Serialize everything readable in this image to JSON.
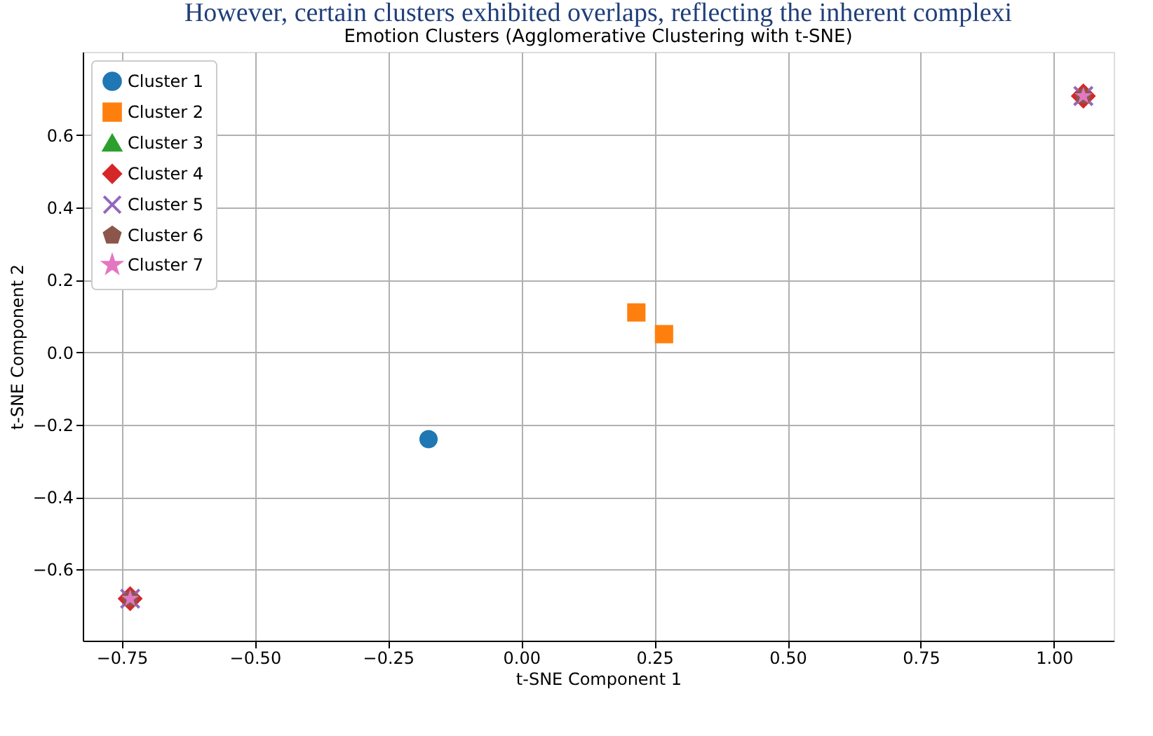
{
  "chart_data": {
    "type": "scatter",
    "title": "Emotion Clusters (Agglomerative Clustering with t-SNE)",
    "annotations": [
      "However, certain clusters exhibited overlaps, reflecting the inherent complexi"
    ],
    "xlabel": "t-SNE Component 1",
    "ylabel": "t-SNE Component 2",
    "xlim": [
      -0.823,
      1.112
    ],
    "ylim": [
      -0.797,
      0.83
    ],
    "xticks": [
      {
        "value": -0.75,
        "label": "−0.75"
      },
      {
        "value": -0.5,
        "label": "−0.50"
      },
      {
        "value": -0.25,
        "label": "−0.25"
      },
      {
        "value": 0,
        "label": "0.00"
      },
      {
        "value": 0.25,
        "label": "0.25"
      },
      {
        "value": 0.5,
        "label": "0.50"
      },
      {
        "value": 0.75,
        "label": "0.75"
      },
      {
        "value": 1,
        "label": "1.00"
      }
    ],
    "yticks": [
      {
        "value": -0.6,
        "label": "−0.6"
      },
      {
        "value": -0.4,
        "label": "−0.4"
      },
      {
        "value": -0.2,
        "label": "−0.2"
      },
      {
        "value": 0,
        "label": "0.0"
      },
      {
        "value": 0.2,
        "label": "0.2"
      },
      {
        "value": 0.4,
        "label": "0.4"
      },
      {
        "value": 0.6,
        "label": "0.6"
      }
    ],
    "grid": true,
    "legend": "top left",
    "series": [
      {
        "name": "Cluster 1",
        "color": "#1f77b4",
        "marker": "circle",
        "x": [
          -0.174
        ],
        "values": [
          -0.24
        ]
      },
      {
        "name": "Cluster 2",
        "color": "#ff7f0e",
        "marker": "square",
        "x": [
          0.216,
          0.268
        ],
        "values": [
          0.11,
          0.05
        ]
      },
      {
        "name": "Cluster 3",
        "color": "#2ca02c",
        "marker": "triangle",
        "x": [
          null,
          null
        ],
        "values": [
          null,
          null
        ]
      },
      {
        "name": "Cluster 4",
        "color": "#d62728",
        "marker": "diamond",
        "x": [
          -0.734,
          1.055
        ],
        "values": [
          -0.681,
          0.708
        ]
      },
      {
        "name": "Cluster 5",
        "color": "#9467bd",
        "marker": "cross",
        "x": [
          -0.734,
          1.055
        ],
        "values": [
          -0.681,
          0.708
        ]
      },
      {
        "name": "Cluster 6",
        "color": "#8c564b",
        "x": [
          -0.734,
          1.055
        ],
        "values": [
          -0.681,
          0.708
        ]
      },
      {
        "name": "Cluster 7",
        "color": "#e377c2",
        "marker": "star",
        "x": [
          -0.734,
          1.055
        ],
        "values": [
          -0.681,
          0.708
        ]
      }
    ]
  }
}
